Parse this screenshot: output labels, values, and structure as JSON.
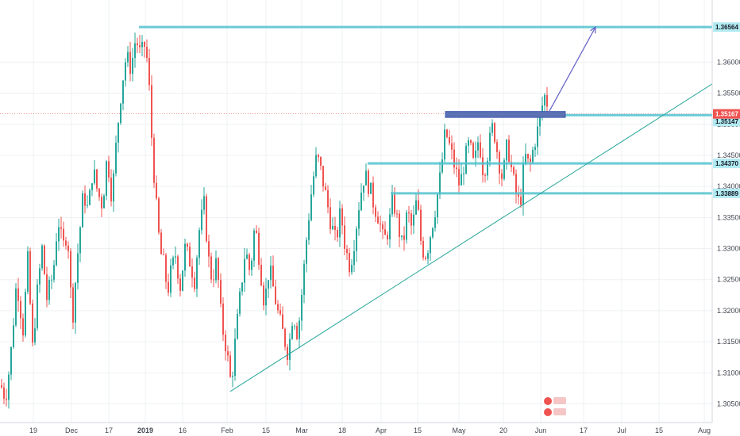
{
  "chart_data": {
    "type": "candlestick",
    "symbol_context": "daily price chart",
    "x_tick_labels": [
      "19",
      "Dec",
      "17",
      "2019",
      "16",
      "Feb",
      "15",
      "Mar",
      "18",
      "Apr",
      "15",
      "May",
      "20",
      "Jun",
      "17",
      "Jul",
      "15",
      "Aug"
    ],
    "y_tick_labels": [
      "1.30500",
      "1.31000",
      "1.31500",
      "1.32000",
      "1.32500",
      "1.33000",
      "1.33500",
      "1.34000",
      "1.34500",
      "1.35000",
      "1.35500",
      "1.36000"
    ],
    "ylim": [
      1.302,
      1.37
    ],
    "grid": true,
    "candle_colors": {
      "up": "#26a69a",
      "down": "#ef5350"
    },
    "price_path": [
      [
        0,
        1.308
      ],
      [
        6,
        1.306
      ],
      [
        12,
        1.312
      ],
      [
        20,
        1.325
      ],
      [
        28,
        1.317
      ],
      [
        34,
        1.328
      ],
      [
        40,
        1.314
      ],
      [
        46,
        1.323
      ],
      [
        52,
        1.33
      ],
      [
        58,
        1.322
      ],
      [
        66,
        1.326
      ],
      [
        72,
        1.335
      ],
      [
        78,
        1.33
      ],
      [
        84,
        1.333
      ],
      [
        90,
        1.318
      ],
      [
        96,
        1.328
      ],
      [
        104,
        1.339
      ],
      [
        110,
        1.336
      ],
      [
        116,
        1.343
      ],
      [
        122,
        1.339
      ],
      [
        128,
        1.337
      ],
      [
        134,
        1.345
      ],
      [
        140,
        1.338
      ],
      [
        146,
        1.348
      ],
      [
        152,
        1.356
      ],
      [
        158,
        1.361
      ],
      [
        164,
        1.359
      ],
      [
        170,
        1.364
      ],
      [
        176,
        1.361
      ],
      [
        182,
        1.363
      ],
      [
        186,
        1.358
      ],
      [
        190,
        1.348
      ],
      [
        194,
        1.34
      ],
      [
        198,
        1.333
      ],
      [
        202,
        1.329
      ],
      [
        206,
        1.327
      ],
      [
        210,
        1.323
      ],
      [
        214,
        1.326
      ],
      [
        220,
        1.329
      ],
      [
        226,
        1.324
      ],
      [
        232,
        1.33
      ],
      [
        238,
        1.328
      ],
      [
        244,
        1.325
      ],
      [
        250,
        1.333
      ],
      [
        256,
        1.337
      ],
      [
        262,
        1.328
      ],
      [
        266,
        1.325
      ],
      [
        272,
        1.328
      ],
      [
        278,
        1.318
      ],
      [
        284,
        1.314
      ],
      [
        290,
        1.308
      ],
      [
        296,
        1.316
      ],
      [
        302,
        1.323
      ],
      [
        308,
        1.33
      ],
      [
        314,
        1.326
      ],
      [
        320,
        1.334
      ],
      [
        326,
        1.328
      ],
      [
        332,
        1.321
      ],
      [
        338,
        1.327
      ],
      [
        344,
        1.323
      ],
      [
        350,
        1.319
      ],
      [
        356,
        1.316
      ],
      [
        362,
        1.313
      ],
      [
        368,
        1.32
      ],
      [
        374,
        1.316
      ],
      [
        380,
        1.324
      ],
      [
        386,
        1.333
      ],
      [
        392,
        1.34
      ],
      [
        398,
        1.345
      ],
      [
        404,
        1.342
      ],
      [
        410,
        1.338
      ],
      [
        416,
        1.334
      ],
      [
        422,
        1.331
      ],
      [
        428,
        1.336
      ],
      [
        434,
        1.33
      ],
      [
        440,
        1.327
      ],
      [
        446,
        1.332
      ],
      [
        452,
        1.338
      ],
      [
        458,
        1.342
      ],
      [
        464,
        1.34
      ],
      [
        470,
        1.337
      ],
      [
        476,
        1.335
      ],
      [
        482,
        1.331
      ],
      [
        488,
        1.333
      ],
      [
        494,
        1.338
      ],
      [
        500,
        1.334
      ],
      [
        506,
        1.33
      ],
      [
        512,
        1.336
      ],
      [
        518,
        1.333
      ],
      [
        524,
        1.338
      ],
      [
        530,
        1.33
      ],
      [
        536,
        1.329
      ],
      [
        542,
        1.333
      ],
      [
        548,
        1.337
      ],
      [
        554,
        1.342
      ],
      [
        560,
        1.349
      ],
      [
        566,
        1.346
      ],
      [
        572,
        1.343
      ],
      [
        578,
        1.34
      ],
      [
        584,
        1.344
      ],
      [
        590,
        1.347
      ],
      [
        596,
        1.343
      ],
      [
        602,
        1.348
      ],
      [
        608,
        1.342
      ],
      [
        614,
        1.346
      ],
      [
        620,
        1.35
      ],
      [
        626,
        1.345
      ],
      [
        632,
        1.341
      ],
      [
        638,
        1.347
      ],
      [
        644,
        1.342
      ],
      [
        650,
        1.338
      ],
      [
        654,
        1.337
      ],
      [
        660,
        1.345
      ],
      [
        666,
        1.343
      ],
      [
        672,
        1.347
      ],
      [
        678,
        1.35
      ],
      [
        682,
        1.353
      ],
      [
        686,
        1.355
      ],
      [
        690,
        1.352
      ]
    ],
    "horizontal_levels": [
      {
        "price": 1.36564,
        "label": "1.36564",
        "color": "#4fc3d0"
      },
      {
        "price": 1.3437,
        "label": "1.34370",
        "color": "#4fc3d0"
      },
      {
        "price": 1.33889,
        "label": "1.33889",
        "color": "#4fc3d0"
      },
      {
        "price": 1.35147,
        "label": "1.35147",
        "color": "#4fc3d0"
      }
    ],
    "current_price": {
      "price": 1.35167,
      "label": "1.35167",
      "color": "#ef5350"
    },
    "resistance_zone": {
      "price_top": 1.3518,
      "price_bottom": 1.3511,
      "color": "#5b72b5"
    },
    "trendline": {
      "from": {
        "x_index": 290,
        "price": 1.307
      },
      "to": {
        "x_index": 932,
        "price": 1.3565
      },
      "color": "#26a69a"
    },
    "projection_arrow": {
      "from": {
        "x_index": 690,
        "price": 1.35167
      },
      "to": {
        "x_index": 750,
        "price": 1.36564
      },
      "color": "#6b68c9"
    }
  }
}
